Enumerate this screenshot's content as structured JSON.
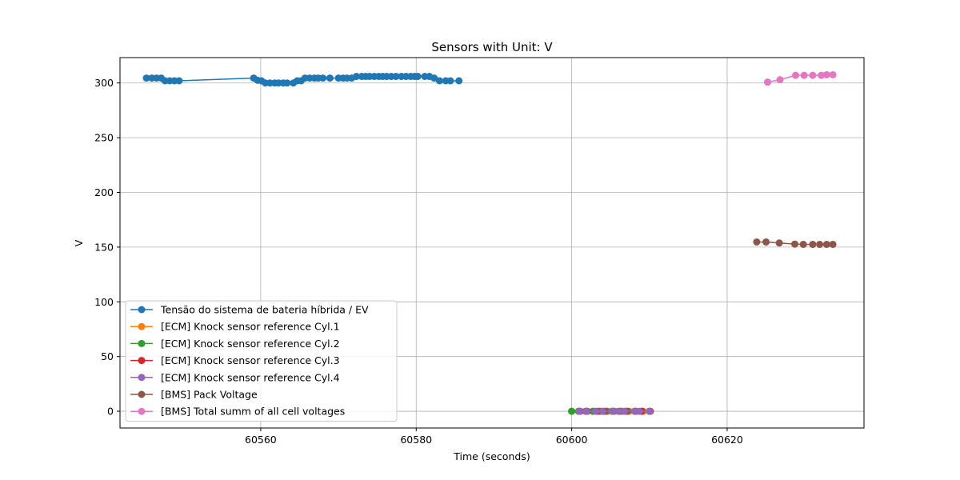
{
  "chart_data": {
    "type": "line",
    "title": "Sensors with Unit: V",
    "xlabel": "Time (seconds)",
    "ylabel": "V",
    "xlim": [
      60541.9,
      60637.6
    ],
    "ylim": [
      -15.3,
      323.2
    ],
    "xticks": [
      60560,
      60580,
      60600,
      60620
    ],
    "yticks": [
      0,
      50,
      100,
      150,
      200,
      250,
      300
    ],
    "grid": true,
    "legend_position": "lower-left",
    "series": [
      {
        "name": "Tensão do sistema de bateria híbrida / EV",
        "color": "#1f77b4",
        "points": [
          [
            60545.3,
            304.5
          ],
          [
            60546.0,
            304.5
          ],
          [
            60546.6,
            304.5
          ],
          [
            60547.2,
            304.5
          ],
          [
            60547.7,
            302.0
          ],
          [
            60548.3,
            302.0
          ],
          [
            60548.9,
            302.0
          ],
          [
            60549.5,
            302.0
          ],
          [
            60559.1,
            304.5
          ],
          [
            60559.6,
            302.5
          ],
          [
            60560.1,
            302.0
          ],
          [
            60560.6,
            300.0
          ],
          [
            60561.2,
            300.0
          ],
          [
            60561.8,
            300.0
          ],
          [
            60562.3,
            300.0
          ],
          [
            60562.9,
            300.0
          ],
          [
            60563.4,
            300.0
          ],
          [
            60564.2,
            300.0
          ],
          [
            60564.7,
            302.0
          ],
          [
            60565.2,
            302.0
          ],
          [
            60565.7,
            304.5
          ],
          [
            60566.3,
            304.5
          ],
          [
            60566.9,
            304.5
          ],
          [
            60567.4,
            304.5
          ],
          [
            60568.0,
            304.5
          ],
          [
            60568.9,
            304.5
          ],
          [
            60570.0,
            304.5
          ],
          [
            60570.6,
            304.5
          ],
          [
            60571.1,
            304.5
          ],
          [
            60571.7,
            304.5
          ],
          [
            60572.3,
            306.0
          ],
          [
            60573.0,
            306.0
          ],
          [
            60573.5,
            306.0
          ],
          [
            60574.0,
            306.0
          ],
          [
            60574.6,
            306.0
          ],
          [
            60575.2,
            306.0
          ],
          [
            60575.7,
            306.0
          ],
          [
            60576.2,
            306.0
          ],
          [
            60576.8,
            306.0
          ],
          [
            60577.4,
            306.0
          ],
          [
            60578.1,
            306.0
          ],
          [
            60578.7,
            306.0
          ],
          [
            60579.3,
            306.0
          ],
          [
            60579.8,
            306.0
          ],
          [
            60580.2,
            306.0
          ],
          [
            60581.1,
            306.0
          ],
          [
            60581.7,
            306.0
          ],
          [
            60582.3,
            304.5
          ],
          [
            60583.0,
            302.0
          ],
          [
            60583.8,
            302.0
          ],
          [
            60584.4,
            302.0
          ],
          [
            60585.5,
            302.0
          ]
        ]
      },
      {
        "name": "[ECM] Knock sensor reference Cyl.1",
        "color": "#ff7f0e",
        "points": [
          [
            60600.0,
            0
          ],
          [
            60600.9,
            0
          ],
          [
            60601.8,
            0
          ],
          [
            60602.8,
            0
          ],
          [
            60603.7,
            0
          ],
          [
            60604.6,
            0
          ],
          [
            60605.5,
            0
          ],
          [
            60606.5,
            0
          ],
          [
            60607.4,
            0
          ],
          [
            60608.3,
            0
          ],
          [
            60609.2,
            0
          ],
          [
            60610.1,
            0
          ]
        ]
      },
      {
        "name": "[ECM] Knock sensor reference Cyl.2",
        "color": "#2ca02c",
        "points": [
          [
            60600.0,
            0
          ],
          [
            60600.9,
            0
          ],
          [
            60601.8,
            0
          ],
          [
            60602.7,
            0
          ],
          [
            60603.6,
            0
          ],
          [
            60604.5,
            0
          ],
          [
            60605.4,
            0
          ],
          [
            60606.3,
            0
          ],
          [
            60607.2,
            0
          ],
          [
            60608.1,
            0
          ],
          [
            60609.0,
            0
          ],
          [
            60610.0,
            0
          ]
        ]
      },
      {
        "name": "[ECM] Knock sensor reference Cyl.3",
        "color": "#d62728",
        "points": [
          [
            60601.1,
            0
          ],
          [
            60602.0,
            0
          ],
          [
            60603.3,
            0
          ],
          [
            60604.2,
            0
          ],
          [
            60605.2,
            0
          ],
          [
            60606.1,
            0
          ],
          [
            60607.0,
            0
          ],
          [
            60608.2,
            0
          ],
          [
            60609.0,
            0
          ],
          [
            60610.1,
            0
          ]
        ]
      },
      {
        "name": "[ECM] Knock sensor reference Cyl.4",
        "color": "#9467bd",
        "points": [
          [
            60601.0,
            0
          ],
          [
            60601.9,
            0
          ],
          [
            60603.1,
            0
          ],
          [
            60604.0,
            0
          ],
          [
            60605.2,
            0
          ],
          [
            60606.0,
            0
          ],
          [
            60606.8,
            0
          ],
          [
            60608.1,
            0
          ],
          [
            60608.7,
            0
          ],
          [
            60610.0,
            0
          ]
        ]
      },
      {
        "name": "[BMS] Pack Voltage",
        "color": "#8c564b",
        "points": [
          [
            60623.8,
            154.7
          ],
          [
            60625.0,
            154.7
          ],
          [
            60626.7,
            153.8
          ],
          [
            60628.7,
            152.8
          ],
          [
            60629.8,
            152.5
          ],
          [
            60631.0,
            152.5
          ],
          [
            60631.9,
            152.5
          ],
          [
            60632.8,
            152.5
          ],
          [
            60633.6,
            152.5
          ]
        ]
      },
      {
        "name": "[BMS] Total summ of all cell voltages",
        "color": "#e377c2",
        "points": [
          [
            60625.2,
            300.8
          ],
          [
            60626.8,
            303.0
          ],
          [
            60628.8,
            307.0
          ],
          [
            60629.9,
            307.0
          ],
          [
            60631.0,
            307.0
          ],
          [
            60632.1,
            307.0
          ],
          [
            60632.8,
            307.5
          ],
          [
            60633.6,
            307.5
          ]
        ]
      }
    ]
  }
}
